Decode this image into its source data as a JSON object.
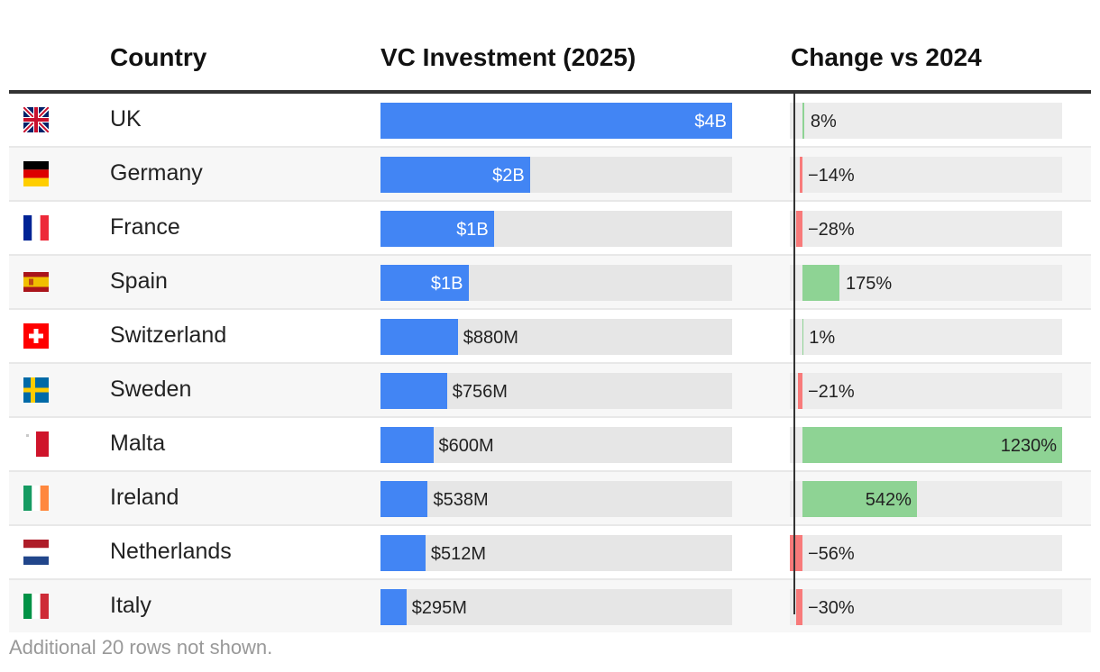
{
  "chart_data": {
    "type": "table",
    "columns": [
      "Country",
      "VC Investment (2025)",
      "Change vs 2024"
    ],
    "rows": [
      {
        "flag": "uk-flag-icon",
        "country": "UK",
        "vc_value_b": 4.0,
        "vc_label": "$4B",
        "change_pct": 8,
        "change_label": "8%"
      },
      {
        "flag": "germany-flag-icon",
        "country": "Germany",
        "vc_value_b": 1.7,
        "vc_label": "$2B",
        "change_pct": -14,
        "change_label": "−14%"
      },
      {
        "flag": "france-flag-icon",
        "country": "France",
        "vc_value_b": 1.29,
        "vc_label": "$1B",
        "change_pct": -28,
        "change_label": "−28%"
      },
      {
        "flag": "spain-flag-icon",
        "country": "Spain",
        "vc_value_b": 1.0,
        "vc_label": "$1B",
        "change_pct": 175,
        "change_label": "175%"
      },
      {
        "flag": "switzerland-flag-icon",
        "country": "Switzerland",
        "vc_value_b": 0.88,
        "vc_label": "$880M",
        "change_pct": 1,
        "change_label": "1%"
      },
      {
        "flag": "sweden-flag-icon",
        "country": "Sweden",
        "vc_value_b": 0.756,
        "vc_label": "$756M",
        "change_pct": -21,
        "change_label": "−21%"
      },
      {
        "flag": "malta-flag-icon",
        "country": "Malta",
        "vc_value_b": 0.6,
        "vc_label": "$600M",
        "change_pct": 1230,
        "change_label": "1230%"
      },
      {
        "flag": "ireland-flag-icon",
        "country": "Ireland",
        "vc_value_b": 0.538,
        "vc_label": "$538M",
        "change_pct": 542,
        "change_label": "542%"
      },
      {
        "flag": "netherlands-flag-icon",
        "country": "Netherlands",
        "vc_value_b": 0.512,
        "vc_label": "$512M",
        "change_pct": -56,
        "change_label": "−56%"
      },
      {
        "flag": "italy-flag-icon",
        "country": "Italy",
        "vc_value_b": 0.295,
        "vc_label": "$295M",
        "change_pct": -30,
        "change_label": "−30%"
      }
    ],
    "vc_domain": [
      0,
      4.0
    ],
    "change_domain": [
      -56,
      1230
    ],
    "colors": {
      "vc_bar": "#4285f4",
      "positive": "#8ed394",
      "negative": "#f87a7a"
    }
  },
  "footer": "Additional 20 rows not shown."
}
